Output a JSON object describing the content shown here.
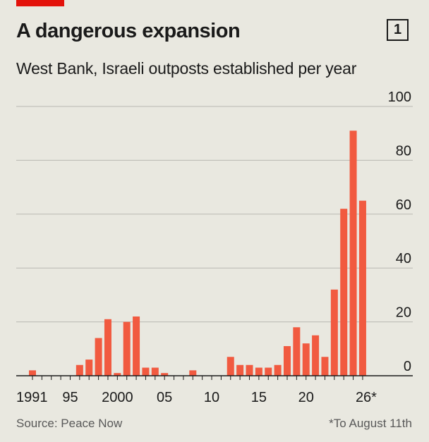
{
  "header": {
    "title": "A dangerous expansion",
    "chart_number": "1",
    "subtitle": "West Bank, Israeli outposts established per year"
  },
  "footer": {
    "source": "Source: Peace Now",
    "footnote": "*To August 11th"
  },
  "colors": {
    "bar": "#f15a40",
    "accent": "#e3120b",
    "background": "#e9e8e0",
    "gridline": "#b9b8b2"
  },
  "chart_data": {
    "type": "bar",
    "title": "A dangerous expansion",
    "subtitle": "West Bank, Israeli outposts established per year",
    "xlabel": "",
    "ylabel": "",
    "ylim": [
      0,
      100
    ],
    "y_ticks": [
      0,
      20,
      40,
      60,
      80,
      100
    ],
    "y_axis_side": "right",
    "grid": true,
    "x_tick_labels": [
      {
        "year": 1991,
        "label": "1991"
      },
      {
        "year": 1995,
        "label": "95"
      },
      {
        "year": 2000,
        "label": "2000"
      },
      {
        "year": 2005,
        "label": "05"
      },
      {
        "year": 2010,
        "label": "10"
      },
      {
        "year": 2015,
        "label": "15"
      },
      {
        "year": 2020,
        "label": "20"
      },
      {
        "year": 2026,
        "label": "26*"
      }
    ],
    "categories": [
      1991,
      1992,
      1993,
      1994,
      1995,
      1996,
      1997,
      1998,
      1999,
      2000,
      2001,
      2002,
      2003,
      2004,
      2005,
      2006,
      2007,
      2008,
      2009,
      2010,
      2011,
      2012,
      2013,
      2014,
      2015,
      2016,
      2017,
      2018,
      2019,
      2020,
      2021,
      2022,
      2023,
      2024,
      2025,
      2026
    ],
    "values": [
      2,
      0,
      0,
      0,
      0,
      4,
      6,
      14,
      21,
      1,
      20,
      22,
      3,
      3,
      1,
      0,
      0,
      2,
      0,
      0,
      0,
      7,
      4,
      4,
      3,
      3,
      4,
      11,
      18,
      12,
      15,
      7,
      32,
      62,
      91,
      65
    ]
  }
}
